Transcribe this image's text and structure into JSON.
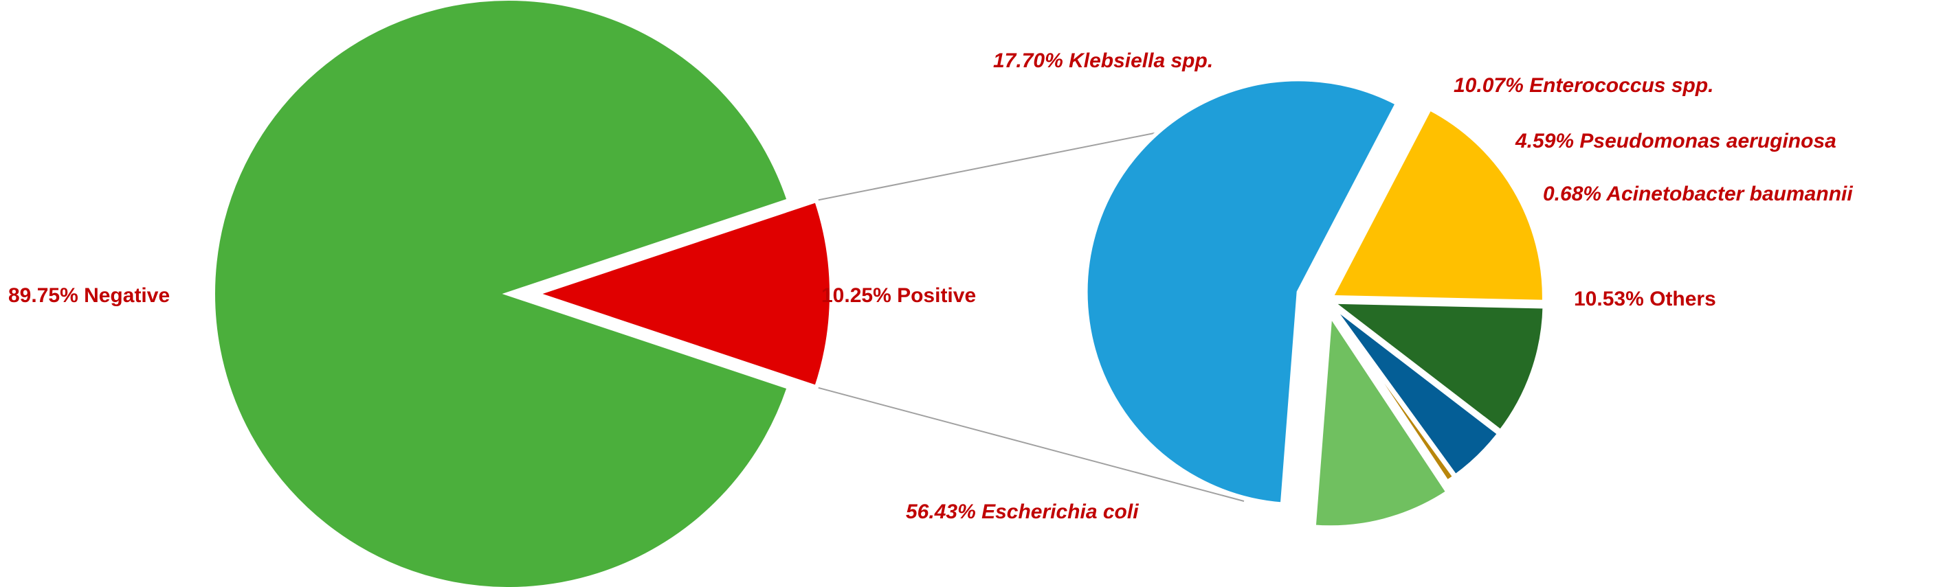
{
  "chart_data": [
    {
      "type": "pie",
      "slices": [
        {
          "label": "Negative",
          "pct_text": "89.75%",
          "value": 89.75,
          "color": "#4BAF3C",
          "italic": false
        },
        {
          "label": "Positive",
          "pct_text": "10.25%",
          "value": 10.25,
          "color": "#E00000",
          "italic": false
        }
      ]
    },
    {
      "type": "pie",
      "slices": [
        {
          "label": "Escherichia coli",
          "pct_text": "56.43%",
          "value": 56.43,
          "color": "#1F9ED9",
          "italic": true
        },
        {
          "label": "Klebsiella spp.",
          "pct_text": "17.70%",
          "value": 17.7,
          "color": "#FFC000",
          "italic": true
        },
        {
          "label": "Enterococcus spp.",
          "pct_text": "10.07%",
          "value": 10.07,
          "color": "#256B25",
          "italic": true
        },
        {
          "label": "Pseudomonas aeruginosa",
          "pct_text": "4.59%",
          "value": 4.59,
          "color": "#045E96",
          "italic": true
        },
        {
          "label": "Acinetobacter baumannii",
          "pct_text": "0.68%",
          "value": 0.68,
          "color": "#B8860B",
          "italic": true
        },
        {
          "label": "Others",
          "pct_text": "10.53%",
          "value": 10.53,
          "color": "#70C060",
          "italic": false
        }
      ]
    }
  ],
  "label_color": "#C00000",
  "connector_color": "#A0A0A0"
}
